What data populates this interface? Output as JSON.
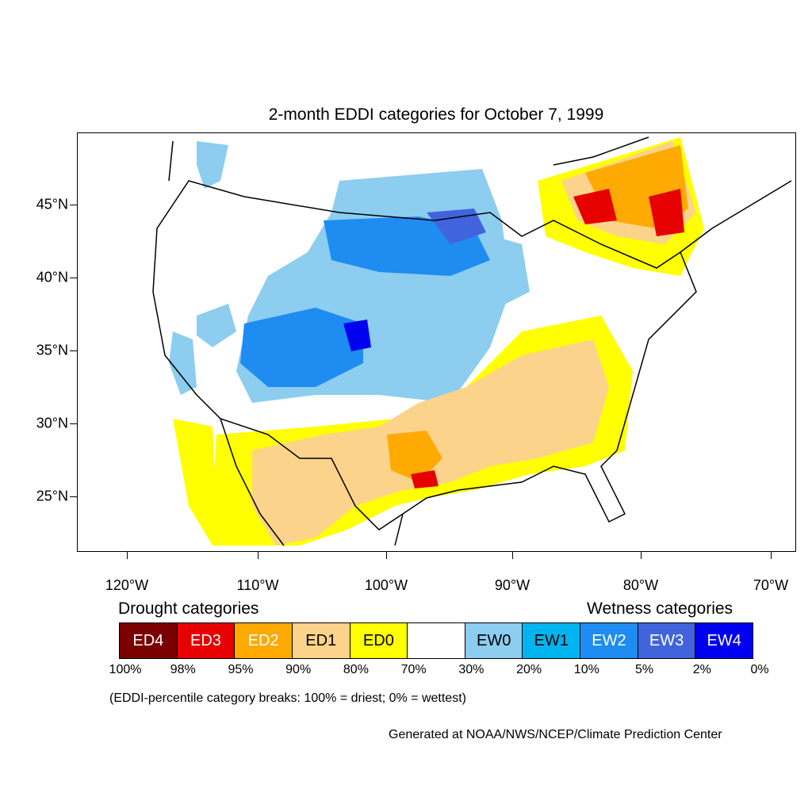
{
  "title": "2-month EDDI categories for October 7, 1999",
  "axes": {
    "lat_labels": [
      "45°N",
      "40°N",
      "35°N",
      "30°N",
      "25°N"
    ],
    "lon_labels": [
      "120°W",
      "110°W",
      "100°W",
      "90°W",
      "80°W",
      "70°W"
    ]
  },
  "legend": {
    "left_title": "Drought categories",
    "right_title": "Wetness categories",
    "categories": [
      {
        "label": "ED4",
        "color": "#7a0000",
        "text_color": "#ffffff"
      },
      {
        "label": "ED3",
        "color": "#e60000",
        "text_color": "#ffffff"
      },
      {
        "label": "ED2",
        "color": "#ffaa00",
        "text_color": "#ffffff"
      },
      {
        "label": "ED1",
        "color": "#fcd38a",
        "text_color": "#000000"
      },
      {
        "label": "ED0",
        "color": "#ffff00",
        "text_color": "#000000"
      },
      {
        "label": "",
        "color": "#ffffff",
        "text_color": "#000000"
      },
      {
        "label": "EW0",
        "color": "#8ccdf0",
        "text_color": "#000000"
      },
      {
        "label": "EW1",
        "color": "#00b4f0",
        "text_color": "#000000"
      },
      {
        "label": "EW2",
        "color": "#1e8cf0",
        "text_color": "#ffffff"
      },
      {
        "label": "EW3",
        "color": "#4164dc",
        "text_color": "#ffffff"
      },
      {
        "label": "EW4",
        "color": "#0000f0",
        "text_color": "#ffffff"
      }
    ],
    "breaks": [
      "100%",
      "98%",
      "95%",
      "90%",
      "80%",
      "70%",
      "30%",
      "20%",
      "10%",
      "5%",
      "2%",
      "0%"
    ]
  },
  "note": "(EDDI-percentile category breaks: 100% = driest; 0% = wettest)",
  "credit": "Generated at NOAA/NWS/NCEP/Climate Prediction Center"
}
